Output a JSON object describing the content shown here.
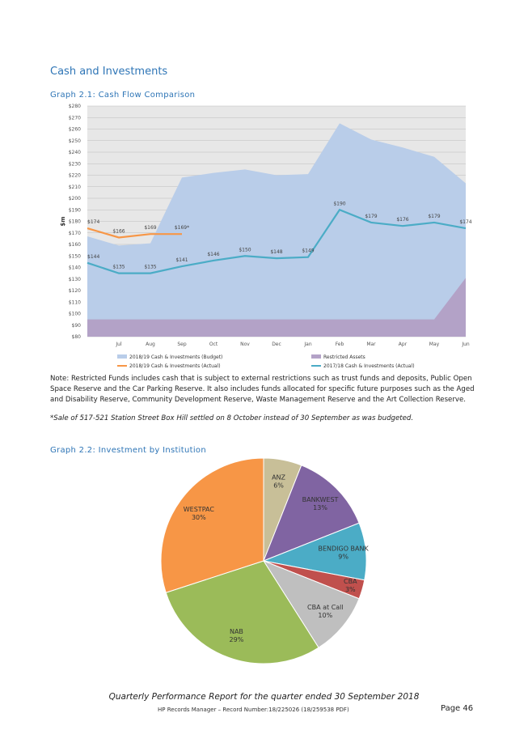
{
  "heading": "Cash and Investments",
  "graph1_title": "Graph 2.1:  Cash Flow Comparison",
  "note": "Note: Restricted Funds includes cash that is subject to external restrictions such as trust funds and deposits, Public Open Space Reserve and the Car Parking Reserve. It also includes funds allocated for specific future purposes such as the Aged and Disability Reserve, Community Development Reserve, Waste Management Reserve and the Art Collection Reserve.",
  "sale_note": "*Sale of 517-521 Station Street Box Hill settled on 8 October instead of 30 September as was budgeted.",
  "graph2_title": "Graph 2.2:  Investment by Institution",
  "footer": {
    "title": "Quarterly Performance Report for the quarter ended 30 September 2018",
    "record": "HP Records Manager – Record Number:18/225026 (18/259538 PDF)",
    "page": "Page 46"
  },
  "chart_data": [
    {
      "type": "area-line",
      "y_label": "$m",
      "grid": true,
      "categories": [
        null,
        "Jul",
        "Aug",
        "Sep",
        "Oct",
        "Nov",
        "Dec",
        "Jan",
        "Feb",
        "Mar",
        "Apr",
        "May",
        "Jun"
      ],
      "ylim": [
        80,
        280
      ],
      "yticks": [
        {
          "value": 80,
          "label": "$80"
        },
        {
          "value": 90,
          "label": "$90"
        },
        {
          "value": 100,
          "label": "$100"
        },
        {
          "value": 110,
          "label": "$110"
        },
        {
          "value": 120,
          "label": "$120"
        },
        {
          "value": 130,
          "label": "$130"
        },
        {
          "value": 140,
          "label": "$140"
        },
        {
          "value": 150,
          "label": "$150"
        },
        {
          "value": 160,
          "label": "$160"
        },
        {
          "value": 170,
          "label": "$170"
        },
        {
          "value": 180,
          "label": "$180"
        },
        {
          "value": 190,
          "label": "$190"
        },
        {
          "value": 200,
          "label": "$200"
        },
        {
          "value": 210,
          "label": "$210"
        },
        {
          "value": 220,
          "label": "$220"
        },
        {
          "value": 230,
          "label": "$230"
        },
        {
          "value": 240,
          "label": "$240"
        },
        {
          "value": 250,
          "label": "$250"
        },
        {
          "value": 260,
          "label": "$260"
        },
        {
          "value": 270,
          "label": "$270"
        },
        {
          "value": 280,
          "label": "$280"
        }
      ],
      "series": [
        {
          "name": "2018/19 Cash & Investments (Budget)",
          "type": "area",
          "color": "#b9cde9",
          "values": [
            167,
            159,
            161,
            218,
            222,
            225,
            220,
            221,
            265,
            251,
            244,
            236,
            213
          ]
        },
        {
          "name": "Restricted Assets",
          "type": "area",
          "color": "#b3a2c7",
          "values": [
            95,
            95,
            95,
            95,
            95,
            95,
            95,
            95,
            95,
            95,
            95,
            95,
            131
          ]
        },
        {
          "name": "2018/19 Cash & Investments (Actual)",
          "type": "line",
          "color": "#f79646",
          "values": [
            174,
            166,
            169,
            169,
            null,
            null,
            null,
            null,
            null,
            null,
            null,
            null,
            null
          ],
          "value_labels": [
            "$174",
            "$166",
            "$169",
            "$169*",
            null,
            null,
            null,
            null,
            null,
            null,
            null,
            null,
            null
          ]
        },
        {
          "name": "2017/18 Cash & Investments (Actual)",
          "type": "line",
          "color": "#4bacc6",
          "values": [
            144,
            135,
            135,
            141,
            146,
            150,
            148,
            149,
            190,
            179,
            176,
            179,
            174
          ],
          "value_labels": [
            "$144",
            "$135",
            "$135",
            "$141",
            "$146",
            "$150",
            "$148",
            "$149",
            "$190",
            "$179",
            "$176",
            "$179",
            "$174"
          ]
        }
      ]
    },
    {
      "type": "pie",
      "categories": [
        "ANZ",
        "BANKWEST",
        "BENDIGO BANK",
        "CBA",
        "CBA at Call",
        "NAB",
        "WESTPAC"
      ],
      "values": [
        6,
        13,
        9,
        3,
        10,
        29,
        30
      ],
      "value_labels": [
        "6%",
        "13%",
        "9%",
        "3%",
        "10%",
        "29%",
        "30%"
      ],
      "colors": [
        "#c8bf98",
        "#8064a2",
        "#4bacc6",
        "#c0504d",
        "#bfbfbf",
        "#9bbb59",
        "#f79646"
      ]
    }
  ]
}
